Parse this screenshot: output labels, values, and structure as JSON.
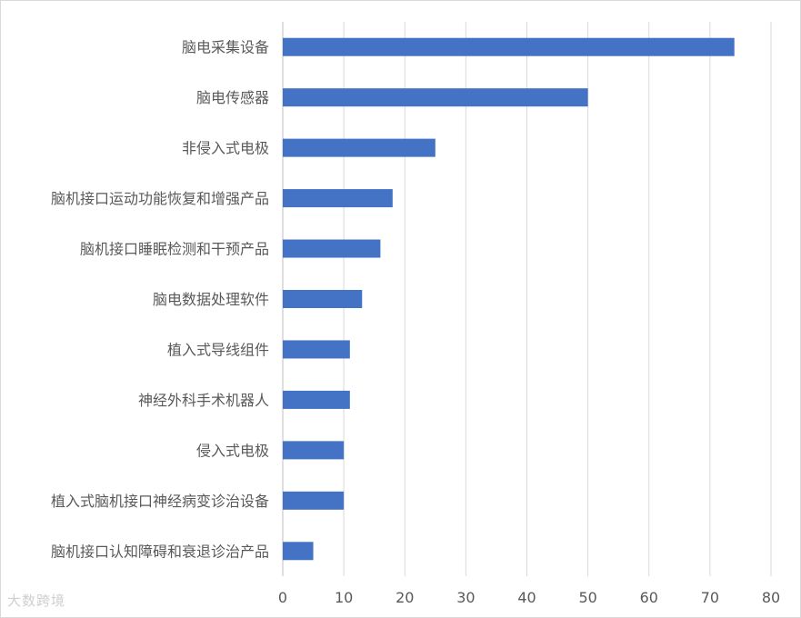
{
  "chart_data": {
    "type": "bar",
    "orientation": "horizontal",
    "categories": [
      "脑电采集设备",
      "脑电传感器",
      "非侵入式电极",
      "脑机接口运动功能恢复和增强产品",
      "脑机接口睡眠检测和干预产品",
      "脑电数据处理软件",
      "植入式导线组件",
      "神经外科手术机器人",
      "侵入式电极",
      "植入式脑机接口神经病变诊治设备",
      "脑机接口认知障碍和衰退诊治产品"
    ],
    "values": [
      74,
      50,
      25,
      18,
      16,
      13,
      11,
      11,
      10,
      10,
      5
    ],
    "title": "",
    "xlabel": "",
    "ylabel": "",
    "xlim": [
      0,
      80
    ],
    "ticks": [
      "0",
      "10",
      "20",
      "30",
      "40",
      "50",
      "60",
      "70",
      "80"
    ],
    "grid": "vertical",
    "bar_color": "#4472c4"
  },
  "watermark": "大数跨境"
}
